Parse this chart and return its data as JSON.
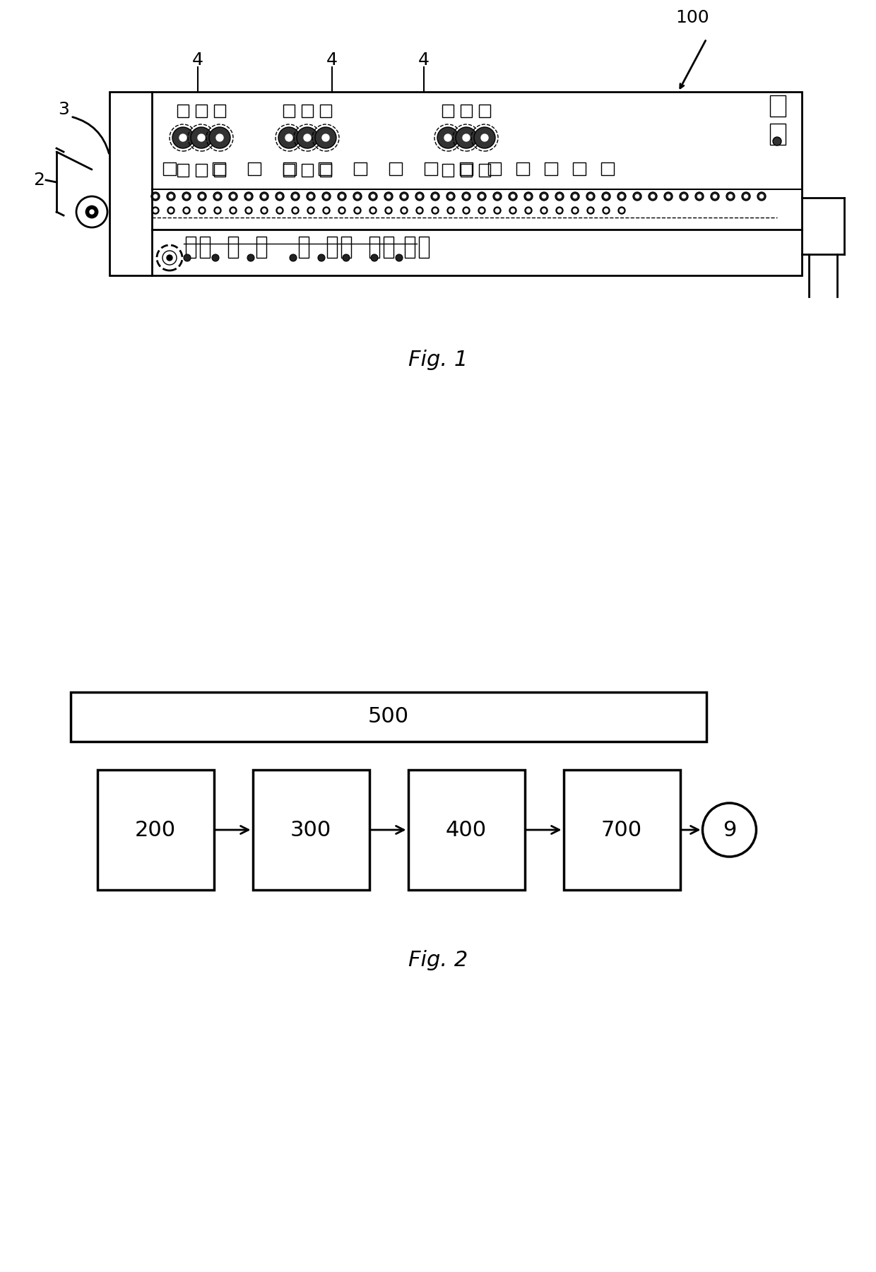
{
  "fig1_caption": "Fig. 1",
  "fig2_caption": "Fig. 2",
  "bg_color": "#ffffff",
  "line_color": "#000000",
  "label_100": "100",
  "label_3": "3",
  "label_2": "2",
  "label_4": "4",
  "fig2_box500": "500",
  "fig2_box200": "200",
  "fig2_box300": "300",
  "fig2_box400": "400",
  "fig2_box700": "700",
  "fig2_circle9": "9"
}
